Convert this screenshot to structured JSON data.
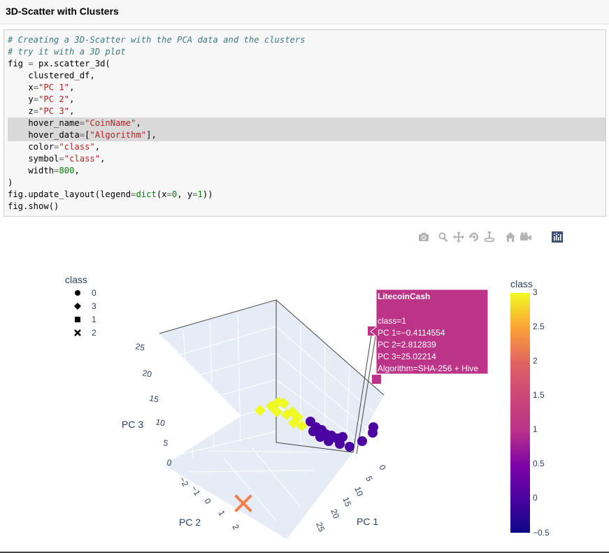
{
  "heading": "3D-Scatter with Clusters",
  "code_lines": [
    {
      "t": [
        {
          "c": "cm",
          "v": "# Creating a 3D-Scatter with the PCA data and the clusters"
        }
      ]
    },
    {
      "t": [
        {
          "c": "cm",
          "v": "# try it with a 3D plot"
        }
      ]
    },
    {
      "t": [
        {
          "c": "",
          "v": "fig "
        },
        {
          "c": "op",
          "v": "="
        },
        {
          "c": "",
          "v": " px.scatter_3d("
        }
      ]
    },
    {
      "t": [
        {
          "c": "",
          "v": "    clustered_df,"
        }
      ]
    },
    {
      "t": [
        {
          "c": "",
          "v": "    x"
        },
        {
          "c": "op",
          "v": "="
        },
        {
          "c": "st",
          "v": "\"PC 1\""
        },
        {
          "c": "",
          "v": ","
        }
      ]
    },
    {
      "t": [
        {
          "c": "",
          "v": "    y"
        },
        {
          "c": "op",
          "v": "="
        },
        {
          "c": "st",
          "v": "\"PC 2\""
        },
        {
          "c": "",
          "v": ","
        }
      ]
    },
    {
      "t": [
        {
          "c": "",
          "v": "    z"
        },
        {
          "c": "op",
          "v": "="
        },
        {
          "c": "st",
          "v": "\"PC 3\""
        },
        {
          "c": "",
          "v": ","
        }
      ]
    },
    {
      "hl": true,
      "t": [
        {
          "c": "",
          "v": "    hover_name"
        },
        {
          "c": "op",
          "v": "="
        },
        {
          "c": "st",
          "v": "\"CoinName\""
        },
        {
          "c": "",
          "v": ","
        }
      ]
    },
    {
      "hl": true,
      "t": [
        {
          "c": "",
          "v": "    hover_data"
        },
        {
          "c": "op",
          "v": "="
        },
        {
          "c": "",
          "v": "["
        },
        {
          "c": "st",
          "v": "\"Algorithm\""
        },
        {
          "c": "",
          "v": "],"
        }
      ]
    },
    {
      "t": [
        {
          "c": "",
          "v": "    color"
        },
        {
          "c": "op",
          "v": "="
        },
        {
          "c": "st",
          "v": "\"class\""
        },
        {
          "c": "",
          "v": ","
        }
      ]
    },
    {
      "t": [
        {
          "c": "",
          "v": "    symbol"
        },
        {
          "c": "op",
          "v": "="
        },
        {
          "c": "st",
          "v": "\"class\""
        },
        {
          "c": "",
          "v": ","
        }
      ]
    },
    {
      "t": [
        {
          "c": "",
          "v": "    width"
        },
        {
          "c": "op",
          "v": "="
        },
        {
          "c": "nm",
          "v": "800"
        },
        {
          "c": "",
          "v": ","
        }
      ]
    },
    {
      "t": [
        {
          "c": "",
          "v": ")"
        }
      ]
    },
    {
      "t": [
        {
          "c": "",
          "v": "fig.update_layout(legend"
        },
        {
          "c": "op",
          "v": "="
        },
        {
          "c": "nm",
          "v": "dict"
        },
        {
          "c": "",
          "v": "(x"
        },
        {
          "c": "op",
          "v": "="
        },
        {
          "c": "nm",
          "v": "0"
        },
        {
          "c": "",
          "v": ", y"
        },
        {
          "c": "op",
          "v": "="
        },
        {
          "c": "nm",
          "v": "1"
        },
        {
          "c": "",
          "v": "))"
        }
      ]
    },
    {
      "t": [
        {
          "c": "",
          "v": "fig.show()"
        }
      ]
    }
  ],
  "modebar": [
    {
      "name": "camera-icon",
      "title": "Download plot as a png"
    },
    {
      "name": "zoom-icon",
      "title": "Zoom"
    },
    {
      "name": "pan-icon",
      "title": "Pan"
    },
    {
      "name": "orbit-rotation-icon",
      "title": "Orbital rotation"
    },
    {
      "name": "turntable-rotation-icon",
      "title": "Turntable rotation"
    },
    {
      "name": "home-icon",
      "title": "Reset camera to default"
    },
    {
      "name": "camera-view-icon",
      "title": "Reset camera to last save"
    }
  ],
  "legend": {
    "title": "class",
    "items": [
      {
        "label": "0",
        "symbol": "circle"
      },
      {
        "label": "3",
        "symbol": "diamond"
      },
      {
        "label": "1",
        "symbol": "square"
      },
      {
        "label": "2",
        "symbol": "x"
      }
    ]
  },
  "colorbar": {
    "title": "class",
    "ticks": [
      "3",
      "2.5",
      "2",
      "1.5",
      "1",
      "0.5",
      "0",
      "−0.5"
    ]
  },
  "axes": {
    "x": {
      "title": "PC 1",
      "ticks": [
        "0",
        "5",
        "10",
        "15",
        "20",
        "25"
      ]
    },
    "y": {
      "title": "PC 2",
      "ticks": [
        "−2",
        "−1",
        "0",
        "1",
        "2"
      ]
    },
    "z": {
      "title": "PC 3",
      "ticks": [
        "0",
        "5",
        "10",
        "15",
        "20",
        "25"
      ]
    }
  },
  "hover": {
    "title": "LitecoinCash",
    "lines": [
      "class=1",
      "PC 1=−0.4114554",
      "PC 2=2.812839",
      "PC 3=25.02214",
      "Algorithm=SHA-256 + Hive"
    ]
  },
  "colors": {
    "class0": "#4b03a1",
    "class1": "#bc3488",
    "class2": "#f0804e",
    "class3": "#f0f921"
  },
  "chart_data": {
    "type": "scatter",
    "x_axis": "PC 1",
    "y_axis": "PC 2",
    "z_axis": "PC 3",
    "color_scale_range": [
      -0.5,
      3
    ],
    "series": [
      {
        "name": "0",
        "symbol": "circle"
      },
      {
        "name": "3",
        "symbol": "diamond"
      },
      {
        "name": "1",
        "symbol": "square"
      },
      {
        "name": "2",
        "symbol": "x"
      }
    ],
    "highlighted_point": {
      "name": "LitecoinCash",
      "class": 1,
      "x": -0.4114554,
      "y": 2.812839,
      "z": 25.02214,
      "Algorithm": "SHA-256 + Hive"
    }
  }
}
